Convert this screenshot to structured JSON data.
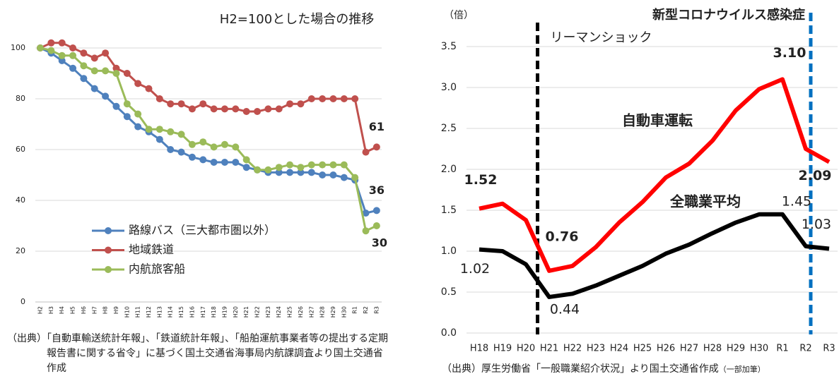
{
  "chart_data": [
    {
      "type": "line",
      "title": "H2=100とした場合の推移",
      "categories": [
        "H2",
        "H3",
        "H4",
        "H5",
        "H6",
        "H7",
        "H8",
        "H9",
        "H10",
        "H11",
        "H12",
        "H13",
        "H14",
        "H15",
        "H16",
        "H17",
        "H18",
        "H19",
        "H20",
        "H21",
        "H22",
        "H23",
        "H24",
        "H25",
        "H26",
        "H27",
        "H28",
        "H29",
        "H30",
        "R1",
        "R2",
        "R3"
      ],
      "series": [
        {
          "name": "路線バス（三大都市圏以外）",
          "color": "#4f81bd",
          "values": [
            100,
            98,
            95,
            92,
            88,
            84,
            81,
            77,
            73,
            69,
            67,
            64,
            60,
            59,
            57,
            56,
            55,
            55,
            55,
            53,
            52,
            51,
            51,
            51,
            51,
            51,
            50,
            50,
            49,
            48,
            35,
            36
          ],
          "value_labels": [
            null,
            null,
            null,
            null,
            null,
            null,
            null,
            null,
            null,
            null,
            null,
            null,
            null,
            null,
            null,
            null,
            null,
            null,
            null,
            null,
            null,
            null,
            null,
            null,
            null,
            null,
            null,
            null,
            null,
            null,
            null,
            "36"
          ]
        },
        {
          "name": "地域鉄道",
          "color": "#c0504d",
          "values": [
            100,
            102,
            102,
            100,
            98,
            96,
            98,
            92,
            90,
            86,
            84,
            80,
            78,
            78,
            76,
            78,
            76,
            76,
            76,
            75,
            75,
            76,
            76,
            78,
            78,
            80,
            80,
            80,
            80,
            80,
            59,
            61
          ],
          "value_labels": [
            null,
            null,
            null,
            null,
            null,
            null,
            null,
            null,
            null,
            null,
            null,
            null,
            null,
            null,
            null,
            null,
            null,
            null,
            null,
            null,
            null,
            null,
            null,
            null,
            null,
            null,
            null,
            null,
            null,
            null,
            null,
            "61"
          ]
        },
        {
          "name": "内航旅客船",
          "color": "#9bbb59",
          "values": [
            100,
            99,
            97,
            97,
            93,
            91,
            91,
            90,
            78,
            74,
            68,
            68,
            67,
            66,
            62,
            63,
            61,
            62,
            61,
            56,
            52,
            52,
            53,
            54,
            53,
            54,
            54,
            54,
            54,
            49,
            28,
            30
          ],
          "value_labels": [
            null,
            null,
            null,
            null,
            null,
            null,
            null,
            null,
            null,
            null,
            null,
            null,
            null,
            null,
            null,
            null,
            null,
            null,
            null,
            null,
            null,
            null,
            null,
            null,
            null,
            null,
            null,
            null,
            null,
            null,
            null,
            "30"
          ]
        }
      ],
      "ylim": [
        0,
        100
      ],
      "yticks": [
        0,
        20,
        40,
        60,
        80,
        100
      ],
      "grid": true,
      "markers": true,
      "legend": "lower-left",
      "source": "（出典）「自動車輸送統計年報」、「鉄道統計年報」、「船舶運航事業者等の提出する定期報告書に関する省令」に基づく国土交通省海事局内航課調査より国土交通省作成"
    },
    {
      "type": "line",
      "y_label": "（倍）",
      "categories": [
        "H18",
        "H19",
        "H20",
        "H21",
        "H22",
        "H23",
        "H24",
        "H25",
        "H26",
        "H27",
        "H28",
        "H29",
        "H30",
        "R1",
        "R2",
        "R3"
      ],
      "series": [
        {
          "name": "自動車運転",
          "color": "#ff0000",
          "values": [
            1.52,
            1.58,
            1.38,
            0.76,
            0.82,
            1.05,
            1.35,
            1.6,
            1.9,
            2.07,
            2.35,
            2.72,
            2.98,
            3.1,
            2.25,
            2.09
          ],
          "value_labels": [
            "1.52",
            null,
            null,
            "0.76",
            null,
            null,
            null,
            null,
            null,
            null,
            null,
            null,
            null,
            "3.10",
            null,
            "2.09"
          ]
        },
        {
          "name": "全職業平均",
          "color": "#000000",
          "values": [
            1.02,
            1.0,
            0.84,
            0.44,
            0.48,
            0.58,
            0.7,
            0.82,
            0.97,
            1.08,
            1.22,
            1.35,
            1.45,
            1.45,
            1.06,
            1.03
          ],
          "value_labels": [
            "1.02",
            null,
            null,
            "0.44",
            null,
            null,
            null,
            null,
            null,
            null,
            null,
            null,
            null,
            "1.45",
            null,
            "1.03"
          ]
        }
      ],
      "ylim": [
        0,
        3.5
      ],
      "yticks": [
        {
          "value": 0,
          "label": "0.0"
        },
        {
          "value": 0.5,
          "label": "0.5"
        },
        {
          "value": 1,
          "label": "1.0"
        },
        {
          "value": 1.5,
          "label": "1.5"
        },
        {
          "value": 2,
          "label": "2.0"
        },
        {
          "value": 2.5,
          "label": "2.5"
        },
        {
          "value": 3,
          "label": "3.0"
        },
        {
          "value": 3.5,
          "label": "3.5"
        }
      ],
      "grid": true,
      "markers": false,
      "legend": "inline",
      "annotations": [
        {
          "text": "リーマンショック",
          "between": [
            "H20",
            "H21"
          ],
          "color": "#000000"
        },
        {
          "text": "新型コロナウイルス感染症",
          "at": "R2",
          "color": "#0070c0"
        }
      ],
      "source": "（出典）厚生労働省「一般職業紹介状況」より国土交通省作成",
      "source_note": "（一部加筆）"
    }
  ]
}
